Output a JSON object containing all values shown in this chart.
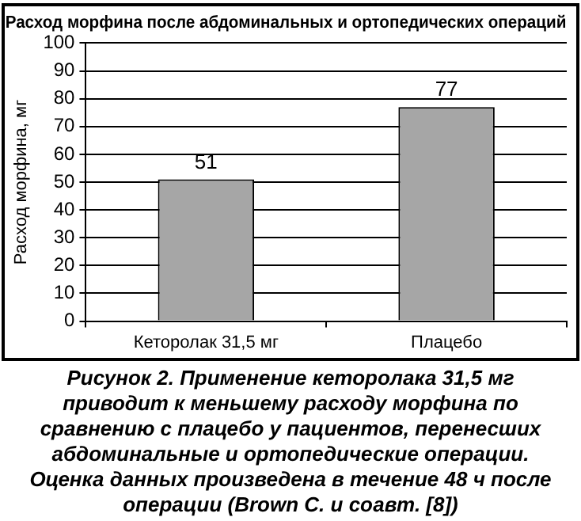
{
  "chart_data": {
    "type": "bar",
    "title": "Расход морфина после абдоминальных и ортопедических операций",
    "ylabel": "Расход морфина, мг",
    "categories": [
      "Кеторолак 31,5 мг",
      "Плацебо"
    ],
    "values": [
      51,
      77
    ],
    "color": "#a6a6a6",
    "ylim": [
      0,
      100
    ],
    "yticks": [
      0,
      10,
      20,
      30,
      40,
      50,
      60,
      70,
      80,
      90,
      100
    ],
    "grid": "y",
    "data_labels": true,
    "legend": false,
    "annotations": [
      "Рисунок 2. Применение кеторолака 31,5 мг приводит к меньшему расходу морфина по сравнению с плацебо у пациентов, перенесших абдоминальные и ортопедические операции. Оценка данных произведена в течение 48 ч после операции (Brown C. и соавт. [8])"
    ]
  }
}
